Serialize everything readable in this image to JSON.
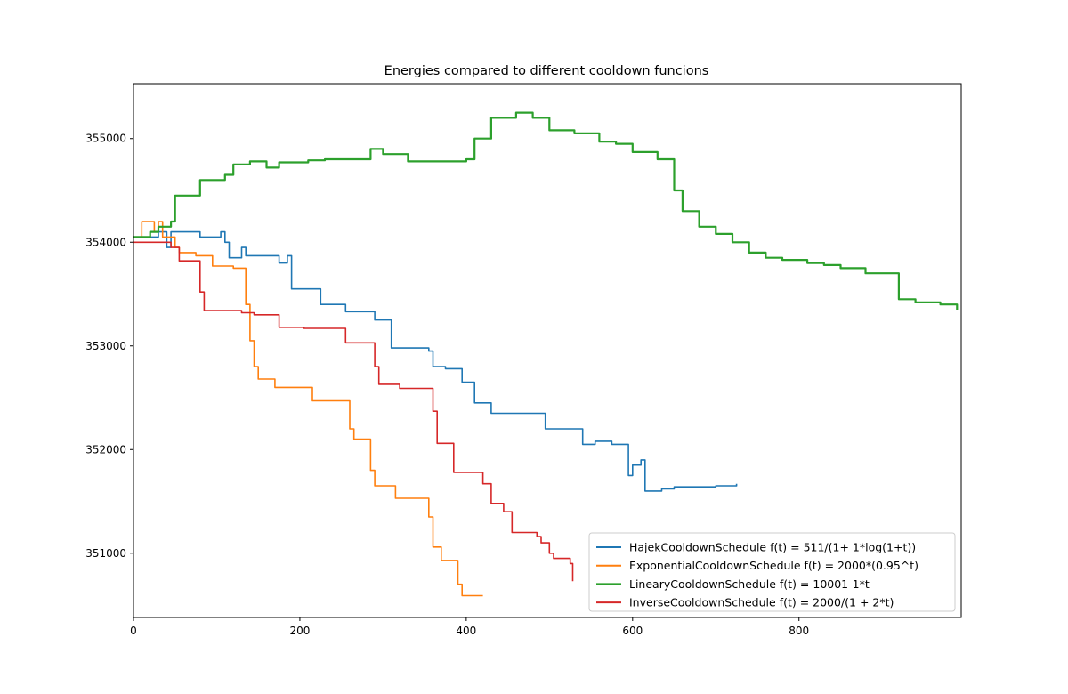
{
  "chart_data": {
    "type": "line",
    "title": "Energies compared to different cooldown funcions",
    "xlabel": "",
    "ylabel": "",
    "xlim": [
      0,
      995
    ],
    "ylim": [
      350380,
      355530
    ],
    "x_ticks": [
      0,
      200,
      400,
      600,
      800
    ],
    "y_ticks": [
      351000,
      352000,
      353000,
      354000,
      355000
    ],
    "grid": false,
    "legend_position": "lower-right",
    "series": [
      {
        "name": "HajekCooldownSchedule f(t) = 511/(1+ 1*log(1+t))",
        "color": "#1f77b4",
        "points": [
          [
            0,
            354050
          ],
          [
            30,
            354100
          ],
          [
            40,
            353950
          ],
          [
            45,
            354100
          ],
          [
            75,
            354100
          ],
          [
            80,
            354050
          ],
          [
            100,
            354050
          ],
          [
            105,
            354100
          ],
          [
            110,
            354000
          ],
          [
            115,
            353850
          ],
          [
            125,
            353850
          ],
          [
            130,
            353950
          ],
          [
            135,
            353870
          ],
          [
            170,
            353870
          ],
          [
            175,
            353800
          ],
          [
            185,
            353870
          ],
          [
            190,
            353550
          ],
          [
            220,
            353550
          ],
          [
            225,
            353400
          ],
          [
            250,
            353400
          ],
          [
            255,
            353330
          ],
          [
            285,
            353330
          ],
          [
            290,
            353250
          ],
          [
            305,
            353250
          ],
          [
            310,
            352980
          ],
          [
            340,
            352980
          ],
          [
            355,
            352950
          ],
          [
            360,
            352800
          ],
          [
            375,
            352780
          ],
          [
            390,
            352780
          ],
          [
            395,
            352650
          ],
          [
            405,
            352650
          ],
          [
            410,
            352450
          ],
          [
            420,
            352450
          ],
          [
            430,
            352350
          ],
          [
            490,
            352350
          ],
          [
            495,
            352200
          ],
          [
            535,
            352200
          ],
          [
            540,
            352050
          ],
          [
            555,
            352080
          ],
          [
            575,
            352050
          ],
          [
            590,
            352050
          ],
          [
            595,
            351750
          ],
          [
            600,
            351850
          ],
          [
            610,
            351900
          ],
          [
            615,
            351600
          ],
          [
            635,
            351620
          ],
          [
            650,
            351640
          ],
          [
            700,
            351650
          ],
          [
            725,
            351670
          ]
        ]
      },
      {
        "name": "ExponentialCooldownSchedule f(t) = 2000*(0.95^t)",
        "color": "#ff7f0e",
        "points": [
          [
            0,
            354050
          ],
          [
            10,
            354200
          ],
          [
            25,
            354100
          ],
          [
            30,
            354200
          ],
          [
            35,
            354050
          ],
          [
            45,
            354050
          ],
          [
            50,
            353950
          ],
          [
            55,
            353900
          ],
          [
            75,
            353870
          ],
          [
            95,
            353770
          ],
          [
            120,
            353750
          ],
          [
            130,
            353750
          ],
          [
            135,
            353400
          ],
          [
            140,
            353050
          ],
          [
            145,
            352800
          ],
          [
            150,
            352680
          ],
          [
            165,
            352680
          ],
          [
            170,
            352600
          ],
          [
            205,
            352600
          ],
          [
            215,
            352470
          ],
          [
            255,
            352470
          ],
          [
            260,
            352200
          ],
          [
            265,
            352100
          ],
          [
            280,
            352100
          ],
          [
            285,
            351800
          ],
          [
            290,
            351650
          ],
          [
            310,
            351650
          ],
          [
            315,
            351530
          ],
          [
            350,
            351530
          ],
          [
            355,
            351350
          ],
          [
            360,
            351060
          ],
          [
            365,
            351060
          ],
          [
            370,
            350930
          ],
          [
            385,
            350930
          ],
          [
            390,
            350700
          ],
          [
            395,
            350590
          ],
          [
            420,
            350590
          ]
        ]
      },
      {
        "name": "LinearyCooldownSchedule f(t) = 10001-1*t",
        "color": "#2ca02c",
        "points": [
          [
            0,
            354050
          ],
          [
            20,
            354100
          ],
          [
            30,
            354150
          ],
          [
            45,
            354200
          ],
          [
            50,
            354450
          ],
          [
            70,
            354450
          ],
          [
            80,
            354600
          ],
          [
            110,
            354650
          ],
          [
            120,
            354750
          ],
          [
            140,
            354780
          ],
          [
            160,
            354720
          ],
          [
            175,
            354770
          ],
          [
            210,
            354790
          ],
          [
            230,
            354800
          ],
          [
            270,
            354800
          ],
          [
            285,
            354900
          ],
          [
            300,
            354850
          ],
          [
            320,
            354850
          ],
          [
            330,
            354780
          ],
          [
            360,
            354780
          ],
          [
            380,
            354780
          ],
          [
            400,
            354800
          ],
          [
            410,
            355000
          ],
          [
            430,
            355200
          ],
          [
            460,
            355250
          ],
          [
            480,
            355200
          ],
          [
            500,
            355080
          ],
          [
            530,
            355050
          ],
          [
            560,
            354970
          ],
          [
            580,
            354950
          ],
          [
            600,
            354870
          ],
          [
            630,
            354800
          ],
          [
            650,
            354500
          ],
          [
            660,
            354300
          ],
          [
            680,
            354150
          ],
          [
            700,
            354080
          ],
          [
            720,
            354000
          ],
          [
            740,
            353900
          ],
          [
            760,
            353850
          ],
          [
            780,
            353830
          ],
          [
            810,
            353800
          ],
          [
            830,
            353780
          ],
          [
            850,
            353750
          ],
          [
            880,
            353700
          ],
          [
            900,
            353700
          ],
          [
            920,
            353450
          ],
          [
            940,
            353420
          ],
          [
            970,
            353400
          ],
          [
            990,
            353350
          ]
        ]
      },
      {
        "name": "InverseCooldownSchedule f(t) = 2000/(1 + 2*t)",
        "color": "#d62728",
        "points": [
          [
            0,
            354000
          ],
          [
            40,
            354000
          ],
          [
            45,
            353950
          ],
          [
            50,
            353950
          ],
          [
            55,
            353820
          ],
          [
            75,
            353820
          ],
          [
            80,
            353520
          ],
          [
            85,
            353340
          ],
          [
            125,
            353340
          ],
          [
            130,
            353320
          ],
          [
            145,
            353300
          ],
          [
            170,
            353300
          ],
          [
            175,
            353180
          ],
          [
            200,
            353180
          ],
          [
            205,
            353170
          ],
          [
            240,
            353170
          ],
          [
            255,
            353030
          ],
          [
            285,
            353030
          ],
          [
            290,
            352800
          ],
          [
            295,
            352630
          ],
          [
            315,
            352630
          ],
          [
            320,
            352590
          ],
          [
            355,
            352590
          ],
          [
            360,
            352370
          ],
          [
            365,
            352060
          ],
          [
            375,
            352060
          ],
          [
            385,
            351780
          ],
          [
            410,
            351780
          ],
          [
            420,
            351670
          ],
          [
            430,
            351480
          ],
          [
            445,
            351400
          ],
          [
            450,
            351400
          ],
          [
            455,
            351200
          ],
          [
            480,
            351200
          ],
          [
            485,
            351160
          ],
          [
            490,
            351100
          ],
          [
            500,
            351000
          ],
          [
            505,
            350950
          ],
          [
            520,
            350950
          ],
          [
            525,
            350900
          ],
          [
            528,
            350730
          ]
        ]
      }
    ]
  }
}
